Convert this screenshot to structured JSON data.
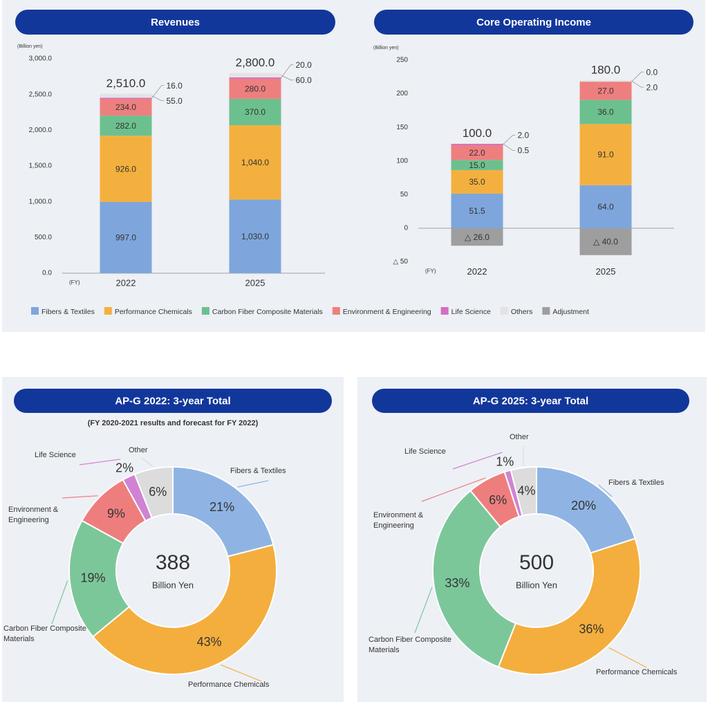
{
  "chart_data": [
    {
      "type": "stacked_bar",
      "title": "Revenues",
      "y_label": "(Billion yen)",
      "x_label": "(FY)",
      "categories": [
        "2022",
        "2025"
      ],
      "ylim": [
        0,
        3000
      ],
      "yticks": [
        {
          "value": 0,
          "label": "0.0"
        },
        {
          "value": 500,
          "label": "500.0"
        },
        {
          "value": 1000,
          "label": "1,000.0"
        },
        {
          "value": 1500,
          "label": "1,500.0"
        },
        {
          "value": 2000,
          "label": "2,000.0"
        },
        {
          "value": 2500,
          "label": "2,500.0"
        },
        {
          "value": 3000,
          "label": "3,000.0"
        }
      ],
      "totals": [
        2510,
        2800
      ],
      "total_labels": [
        "2,510.0",
        "2,800.0"
      ],
      "series": [
        {
          "name": "Fibers & Textiles",
          "color": "#7ea6dc",
          "values": [
            997,
            1030
          ],
          "value_labels": [
            "997.0",
            "1,030.0"
          ]
        },
        {
          "name": "Performance Chemicals",
          "color": "#f4b03e",
          "values": [
            926,
            1040
          ],
          "value_labels": [
            "926.0",
            "1,040.0"
          ]
        },
        {
          "name": "Carbon Fiber Composite Materials",
          "color": "#6cc08e",
          "values": [
            282,
            370
          ],
          "value_labels": [
            "282.0",
            "370.0"
          ]
        },
        {
          "name": "Environment & Engineering",
          "color": "#ee7f7f",
          "values": [
            234,
            280
          ],
          "value_labels": [
            "234.0",
            "280.0"
          ]
        },
        {
          "name": "Life Science",
          "color": "#d46ec4",
          "values": [
            16,
            20
          ],
          "value_labels": [
            "16.0",
            "20.0"
          ]
        },
        {
          "name": "Others",
          "color": "#e3e3e3",
          "values": [
            55,
            60
          ],
          "value_labels": [
            "55.0",
            "60.0"
          ]
        }
      ]
    },
    {
      "type": "stacked_bar",
      "title": "Core Operating Income",
      "y_label": "(Billion yen)",
      "x_label": "(FY)",
      "categories": [
        "2022",
        "2025"
      ],
      "ylim": [
        -50,
        250
      ],
      "yticks": [
        {
          "value": -50,
          "label": "△ 50"
        },
        0,
        50,
        100,
        150,
        200,
        250
      ],
      "totals": [
        100,
        180
      ],
      "total_labels": [
        "100.0",
        "180.0"
      ],
      "legend": "bottom",
      "series": [
        {
          "name": "Fibers & Textiles",
          "color": "#7ea6dc",
          "values": [
            51.5,
            64
          ],
          "value_labels": [
            "51.5",
            "64.0"
          ]
        },
        {
          "name": "Performance Chemicals",
          "color": "#f4b03e",
          "values": [
            35,
            91
          ],
          "value_labels": [
            "35.0",
            "91.0"
          ]
        },
        {
          "name": "Carbon Fiber Composite Materials",
          "color": "#6cc08e",
          "values": [
            15,
            36
          ],
          "value_labels": [
            "15.0",
            "36.0"
          ]
        },
        {
          "name": "Environment & Engineering",
          "color": "#ee7f7f",
          "values": [
            22,
            27
          ],
          "value_labels": [
            "22.0",
            "27.0"
          ]
        },
        {
          "name": "Life Science",
          "color": "#d46ec4",
          "values": [
            2,
            0
          ],
          "value_labels": [
            "2.0",
            "0.0"
          ]
        },
        {
          "name": "Others",
          "color": "#e3e3e3",
          "values": [
            0.5,
            2
          ],
          "value_labels": [
            "0.5",
            "2.0"
          ]
        },
        {
          "name": "Adjustment",
          "color": "#9e9e9e",
          "values": [
            -26,
            -40
          ],
          "value_labels": [
            "△ 26.0",
            "△ 40.0"
          ]
        }
      ]
    },
    {
      "type": "donut",
      "title": "AP-G 2022: 3-year Total",
      "subtitle": "(FY 2020-2021 results and forecast for FY 2022)",
      "total": 388,
      "total_label": "Billion Yen",
      "categories": [
        "Fibers & Textiles",
        "Performance Chemicals",
        "Carbon Fiber Composite Materials",
        "Environment & Engineering",
        "Life Science",
        "Other"
      ],
      "values": [
        21,
        43,
        19,
        9,
        2,
        6
      ],
      "value_labels": [
        "21%",
        "43%",
        "19%",
        "9%",
        "2%",
        "6%"
      ],
      "colors": [
        "#8fb4e3",
        "#f4ae3d",
        "#7cc79a",
        "#ee7e7e",
        "#d083d3",
        "#dcdcdc"
      ]
    },
    {
      "type": "donut",
      "title": "AP-G 2025: 3-year Total",
      "total": 500,
      "total_label": "Billion Yen",
      "categories": [
        "Fibers & Textiles",
        "Performance Chemicals",
        "Carbon Fiber Composite Materials",
        "Environment & Engineering",
        "Life Science",
        "Other"
      ],
      "values": [
        20,
        36,
        33,
        6,
        1,
        4
      ],
      "value_labels": [
        "20%",
        "36%",
        "33%",
        "6%",
        "1%",
        "4%"
      ],
      "colors": [
        "#8fb4e3",
        "#f4ae3d",
        "#7cc79a",
        "#ee7e7e",
        "#d083d3",
        "#dcdcdc"
      ]
    }
  ]
}
